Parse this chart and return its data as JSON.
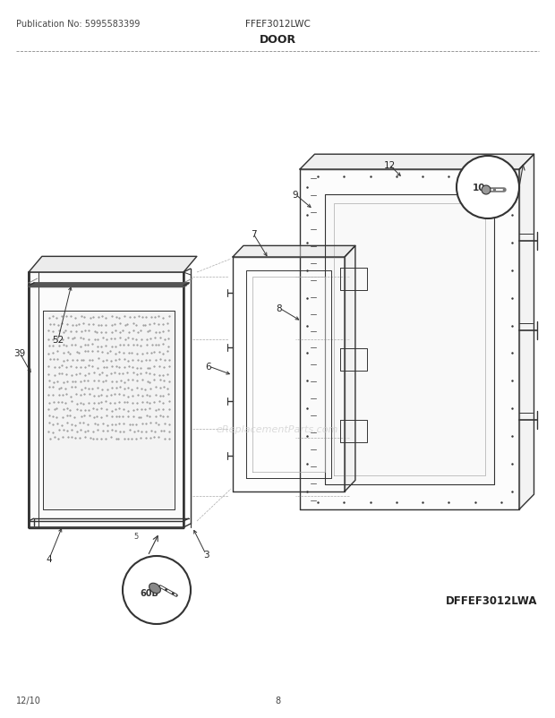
{
  "title_left": "Publication No: 5995583399",
  "title_center": "FFEF3012LWC",
  "title_section": "DOOR",
  "bottom_left": "12/10",
  "bottom_center": "8",
  "bottom_right": "DFFEF3012LWA",
  "bg_color": "#ffffff",
  "watermark": "eReplacementParts.com",
  "figsize": [
    6.2,
    8.03
  ],
  "dpi": 100
}
